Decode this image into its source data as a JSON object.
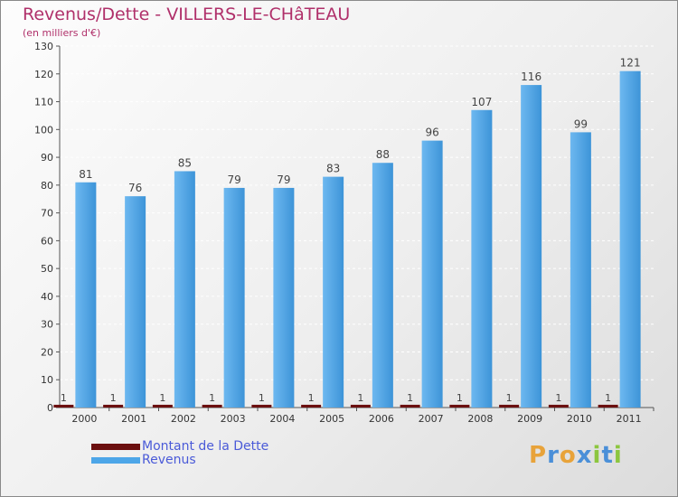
{
  "title": "Revenus/Dette - VILLERS-LE-CHâTEAU",
  "subtitle": "(en milliers d'€)",
  "logo_text": "Proxiti",
  "colors": {
    "title": "#b0306a",
    "dette": "#6b0f0f",
    "revenus": "#4da6e8",
    "legend_text": "#4a5ad8"
  },
  "chart_data": {
    "type": "bar",
    "title": "Revenus/Dette - VILLERS-LE-CHâTEAU",
    "ylabel": "(en milliers d'€)",
    "categories": [
      "2000",
      "2001",
      "2002",
      "2003",
      "2004",
      "2005",
      "2006",
      "2007",
      "2008",
      "2009",
      "2010",
      "2011"
    ],
    "series": [
      {
        "name": "Montant de la Dette",
        "values": [
          1,
          1,
          1,
          1,
          1,
          1,
          1,
          1,
          1,
          1,
          1,
          1
        ]
      },
      {
        "name": "Revenus",
        "values": [
          81,
          76,
          85,
          79,
          79,
          83,
          88,
          96,
          107,
          116,
          99,
          121
        ]
      }
    ],
    "ylim": [
      0,
      130
    ],
    "yticks": [
      0,
      10,
      20,
      30,
      40,
      50,
      60,
      70,
      80,
      90,
      100,
      110,
      120,
      130
    ],
    "grid": true,
    "legend": "bottom-left"
  }
}
